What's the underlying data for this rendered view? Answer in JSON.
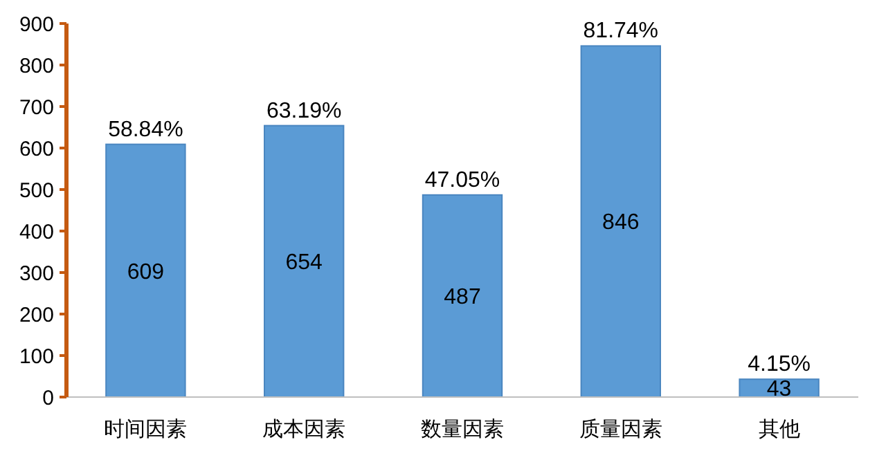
{
  "chart_data": {
    "type": "bar",
    "categories": [
      "时间因素",
      "成本因素",
      "数量因素",
      "质量因素",
      "其他"
    ],
    "values": [
      609,
      654,
      487,
      846,
      43
    ],
    "color": "#5b9bd5",
    "data_labels": true,
    "ylim": [
      0,
      900
    ],
    "yticks": [
      0,
      100,
      200,
      300,
      400,
      500,
      600,
      700,
      800,
      900
    ],
    "grid": false,
    "annotations": [
      {
        "text": "58.84%",
        "x": "时间因素",
        "y": 609
      },
      {
        "text": "63.19%",
        "x": "成本因素",
        "y": 654
      },
      {
        "text": "47.05%",
        "x": "数量因素",
        "y": 487
      },
      {
        "text": "81.74%",
        "x": "质量因素",
        "y": 846
      },
      {
        "text": "4.15%",
        "x": "其他",
        "y": 43
      }
    ]
  }
}
